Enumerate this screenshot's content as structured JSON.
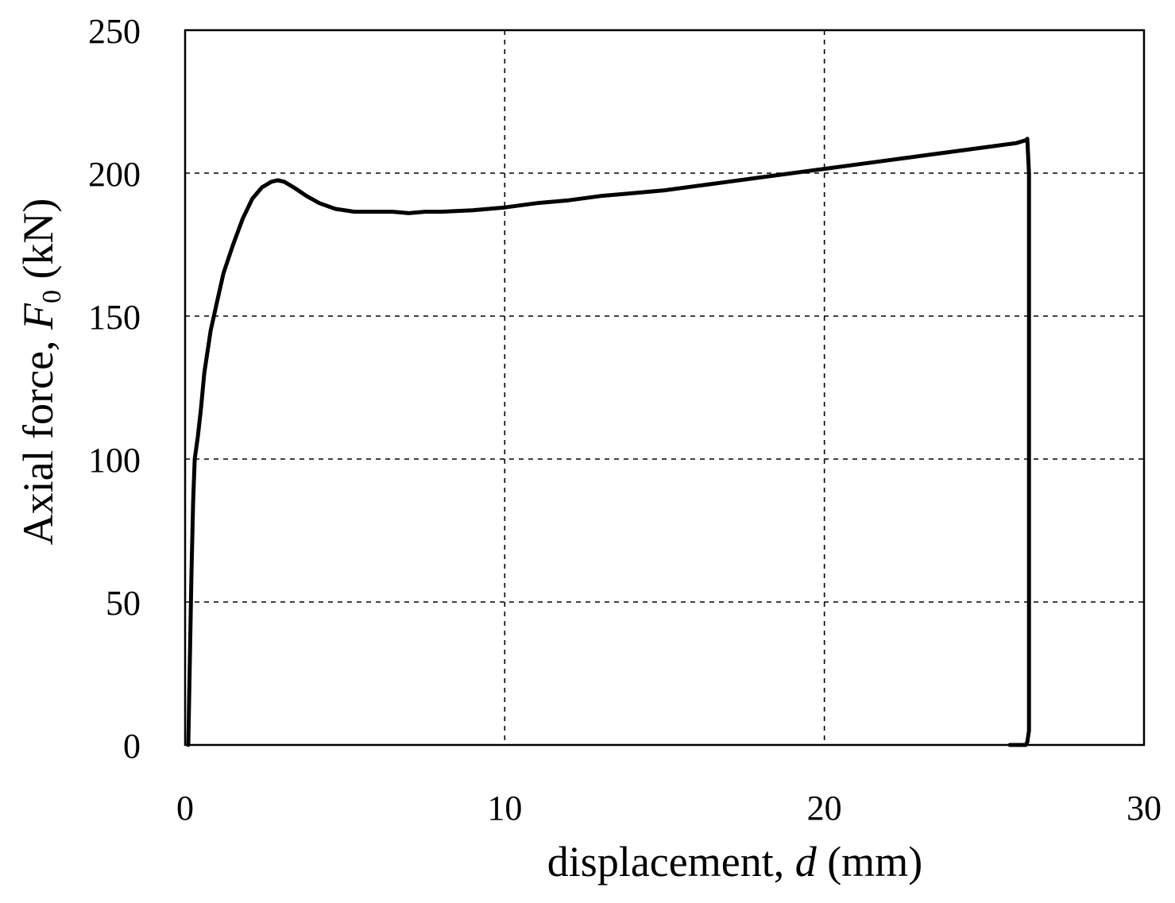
{
  "chart_data": {
    "type": "line",
    "title": "",
    "xlabel": {
      "prefix": "displacement, ",
      "symbol": "d",
      "suffix": " (mm)"
    },
    "ylabel": {
      "prefix": "Axial force, ",
      "symbol": "F",
      "subscript": "0",
      "suffix": " (kN)"
    },
    "xlim": [
      0,
      30
    ],
    "ylim": [
      0,
      250
    ],
    "xticks": [
      0,
      10,
      20,
      30
    ],
    "yticks": [
      0,
      50,
      100,
      150,
      200,
      250
    ],
    "xtick_labels": [
      "0",
      "10",
      "20",
      "30"
    ],
    "ytick_labels": [
      "0",
      "50",
      "100",
      "150",
      "200",
      "250"
    ],
    "grid": true,
    "series": [
      {
        "color": "#000000",
        "x": [
          0.1,
          0.15,
          0.2,
          0.25,
          0.3,
          0.4,
          0.5,
          0.6,
          0.8,
          1.0,
          1.2,
          1.5,
          1.8,
          2.1,
          2.4,
          2.7,
          2.9,
          3.1,
          3.4,
          3.8,
          4.2,
          4.7,
          5.3,
          6.0,
          6.5,
          7.0,
          7.5,
          8.0,
          9.0,
          10.0,
          11.0,
          12.0,
          13.0,
          14.0,
          15.0,
          16.0,
          17.0,
          18.0,
          19.0,
          20.0,
          21.0,
          22.0,
          23.0,
          24.0,
          25.0,
          26.0,
          26.3,
          26.35,
          26.4,
          26.4,
          26.35,
          26.3,
          26.0,
          25.8
        ],
        "y": [
          0,
          30,
          60,
          85,
          100,
          108,
          118,
          130,
          145,
          155,
          165,
          175,
          184,
          191,
          195,
          197,
          197.5,
          197,
          195,
          192,
          189.5,
          187.5,
          186.5,
          186.5,
          186.5,
          186,
          186.5,
          186.5,
          187,
          188,
          189.5,
          190.5,
          192,
          193,
          194,
          195.5,
          197,
          198.5,
          200,
          201.5,
          203,
          204.5,
          206,
          207.5,
          209,
          210.5,
          211.5,
          212,
          200,
          5,
          1,
          0,
          0,
          0
        ]
      }
    ]
  }
}
